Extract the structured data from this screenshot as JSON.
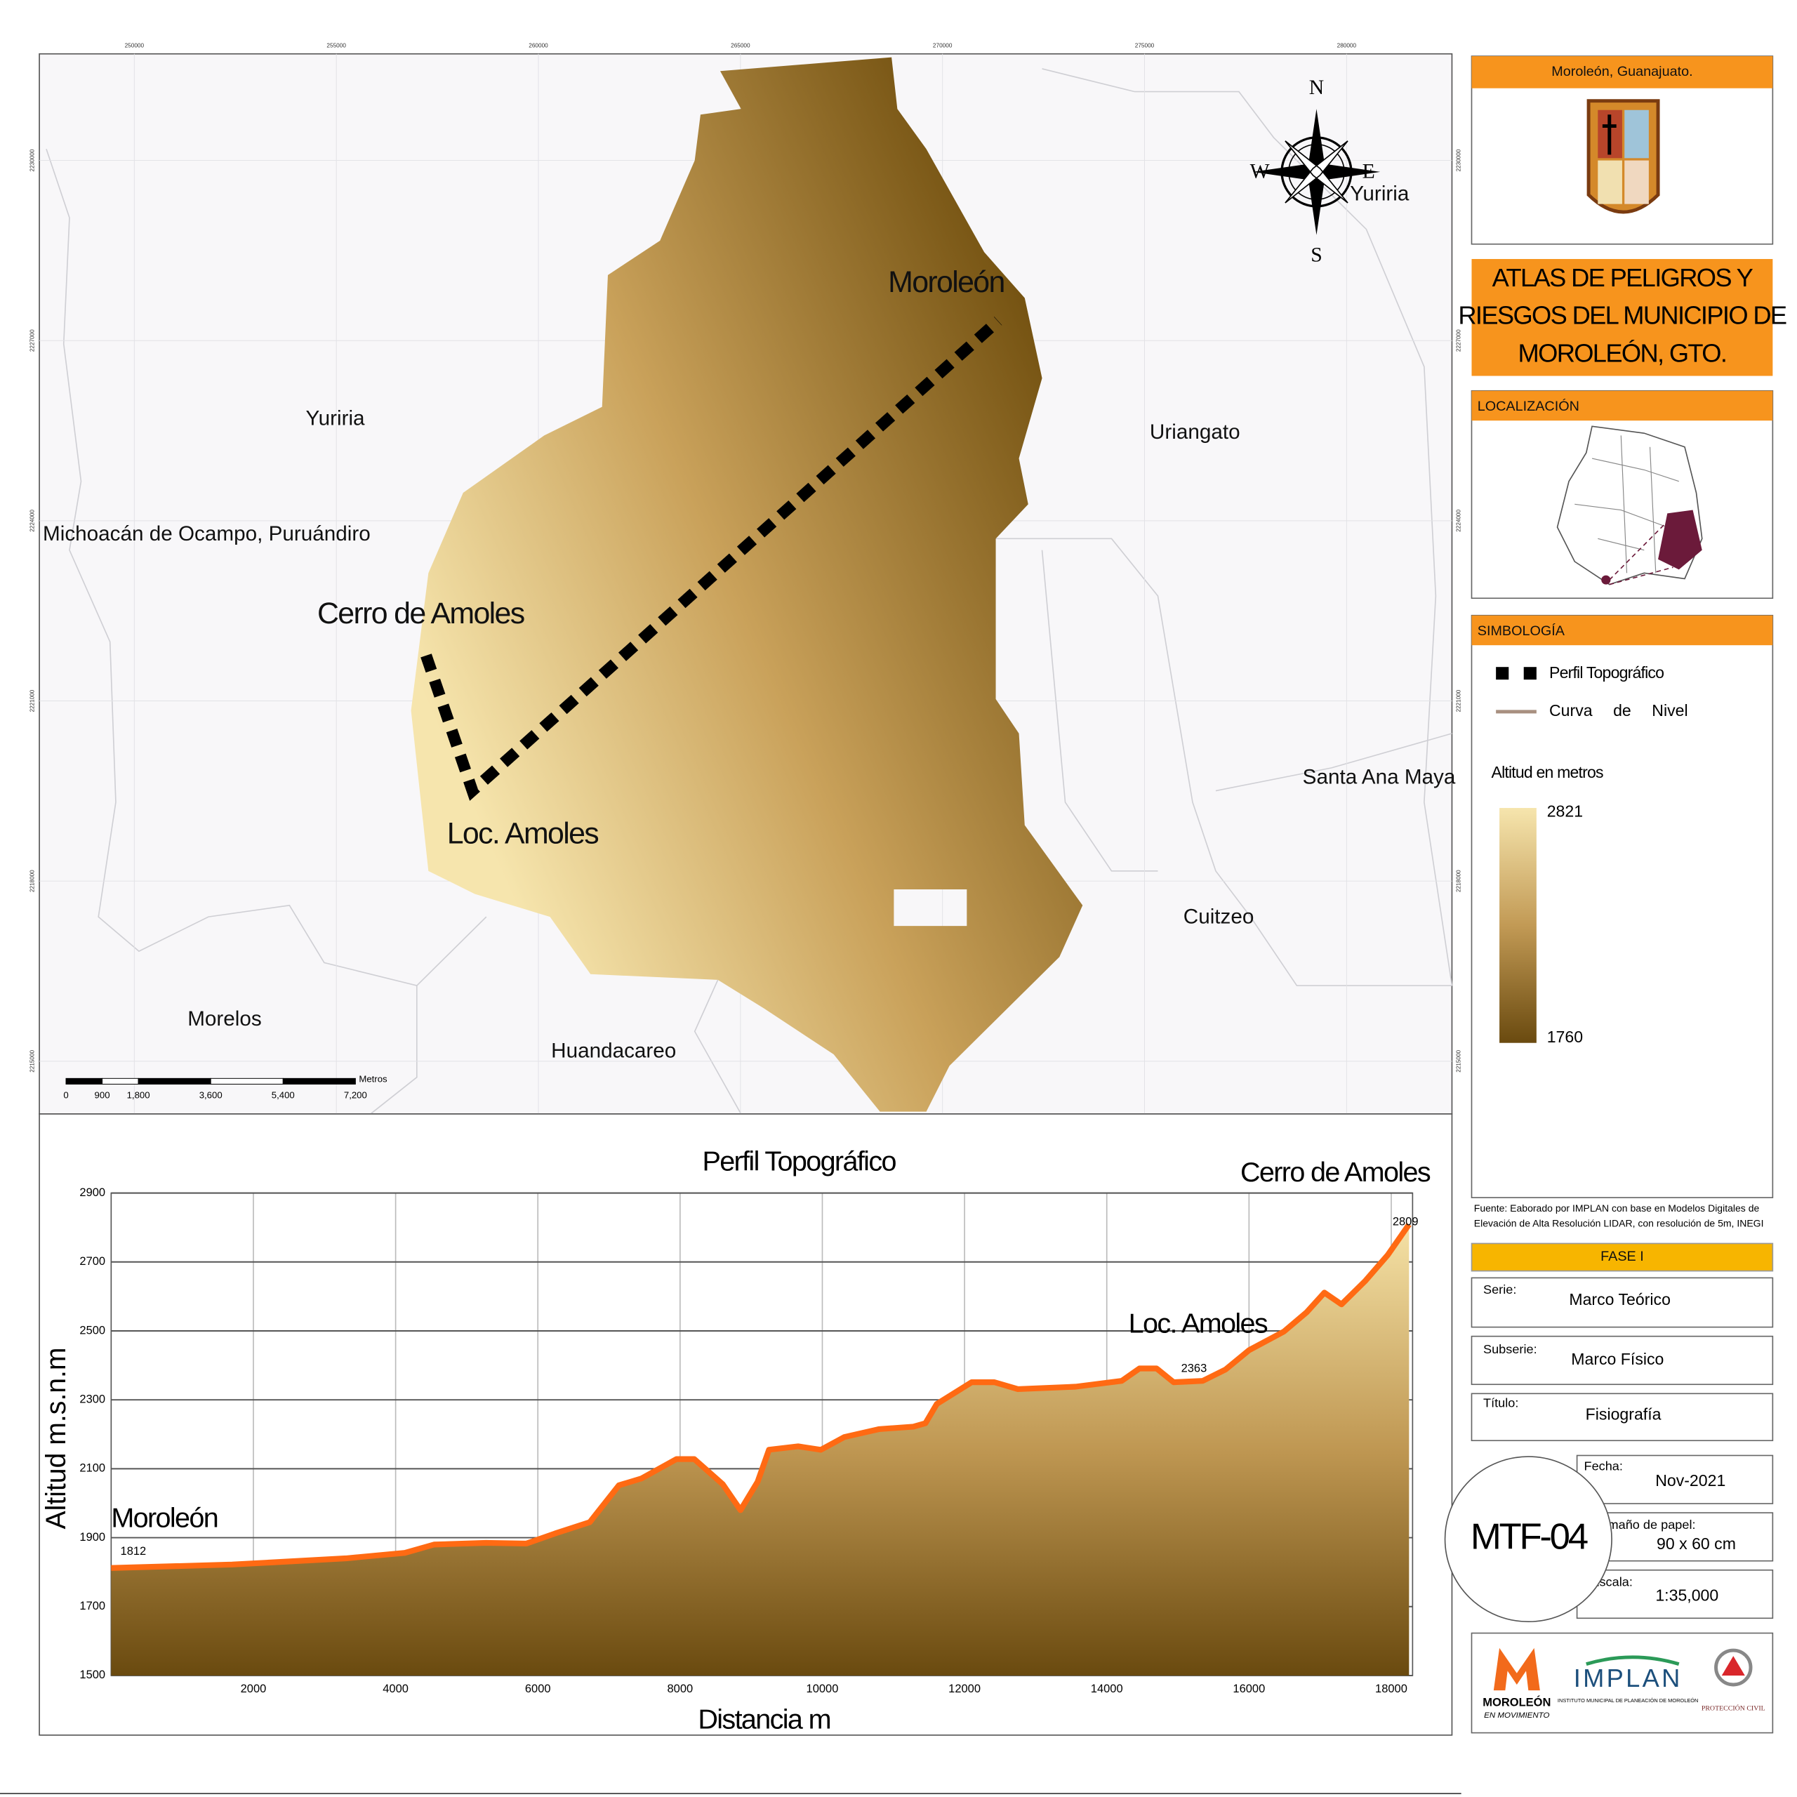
{
  "map": {
    "xticks": [
      250000,
      255000,
      260000,
      265000,
      270000,
      275000,
      280000
    ],
    "yticks": [
      2230000,
      2227000,
      2224000,
      2221000,
      2218000,
      2215000
    ],
    "places": [
      "Moroleón",
      "Yuriria",
      "Yuriria",
      "Uriangato",
      "Michoacán de Ocampo, Puruándiro",
      "Cerro de Amoles",
      "Loc. Amoles",
      "Santa Ana Maya",
      "Cuitzeo",
      "Morelos",
      "Huandacareo"
    ],
    "compass": {
      "n": "N",
      "e": "E",
      "s": "S",
      "w": "W"
    },
    "scale_bar": {
      "unit": "Metros",
      "ticks": [
        0,
        900,
        {
          "value": 1800,
          "label": "1,800"
        },
        {
          "value": 3600,
          "label": "3,600"
        },
        {
          "value": 5400,
          "label": "5,400"
        },
        {
          "value": 7200,
          "label": "7,200"
        }
      ]
    }
  },
  "panel": {
    "location_title": "Moroleón, Guanajuato.",
    "atlas_title": [
      "ATLAS DE PELIGROS Y",
      "RIESGOS DEL MUNICIPIO DE",
      "MOROLEÓN, GTO."
    ],
    "localization": "LOCALIZACIÓN",
    "legend": {
      "title": "SIMBOLOGÍA",
      "items": [
        "Perfil Topográfico",
        "Curva de Nivel"
      ],
      "ramp_title": "Altitud en metros",
      "ramp_max": 2821,
      "ramp_min": 1760
    },
    "source": [
      "Fuente: Eaborado por IMPLAN con base en Modelos Digitales de",
      "Elevación de Alta Resolución LIDAR, con resolución de 5m, INEGI"
    ],
    "phase": "FASE I",
    "fields": [
      {
        "label": "Serie:",
        "value": "Marco Teórico"
      },
      {
        "label": "Subserie:",
        "value": "Marco Físico"
      },
      {
        "label": "Título:",
        "value": "Fisiografía"
      },
      {
        "label": "Fecha:",
        "value": "Nov-2021"
      },
      {
        "label": "Tamaño de papel:",
        "value": "90 x 60 cm"
      },
      {
        "label": "Escala:",
        "value": "1:35,000"
      }
    ],
    "code": "MTF-04",
    "logos": [
      "MOROLEÓN",
      "EN MOVIMIENTO",
      "IMPLAN",
      "INSTITUTO MUNICIPAL DE PLANEACIÓN DE MOROLEÓN",
      "PROTECCIÓN CIVIL"
    ]
  },
  "chart_data": {
    "type": "line",
    "title": "Perfil Topográfico",
    "x_label": "Distancia m",
    "y_label": "Altitud m.s.n.m",
    "x": [
      0,
      1700,
      3300,
      4130,
      4540,
      5270,
      5840,
      6240,
      6730,
      7140,
      7460,
      7950,
      8200,
      8600,
      8850,
      9090,
      9250,
      9660,
      9980,
      10310,
      10800,
      11280,
      11450,
      11610,
      12100,
      12420,
      12750,
      13560,
      14210,
      14460,
      14700,
      14940,
      15350,
      15670,
      16000,
      16490,
      16810,
      17060,
      17300,
      17630,
      17950,
      18250
    ],
    "values": [
      1812,
      1822,
      1840,
      1856,
      1880,
      1885,
      1883,
      1912,
      1945,
      2052,
      2072,
      2128,
      2128,
      2055,
      1980,
      2062,
      2155,
      2165,
      2155,
      2192,
      2215,
      2222,
      2232,
      2288,
      2351,
      2351,
      2331,
      2338,
      2355,
      2391,
      2391,
      2351,
      2355,
      2388,
      2444,
      2498,
      2554,
      2611,
      2577,
      2644,
      2720,
      2809
    ],
    "color": "#ff6a13",
    "xlim": [
      0,
      18300
    ],
    "ylim": [
      1500,
      2900
    ],
    "xticks": [
      2000,
      4000,
      6000,
      8000,
      10000,
      12000,
      14000,
      16000,
      18000
    ],
    "yticks": [
      1500,
      1700,
      1900,
      2100,
      2300,
      2500,
      2700,
      2900
    ],
    "grid": true,
    "annotations": [
      {
        "text": "Moroleón",
        "x": 0,
        "y": 1812
      },
      {
        "text": "Loc. Amoles",
        "x": 15000,
        "y": 2363
      },
      {
        "text": "Cerro de Amoles",
        "x": 18250,
        "y": 2809
      }
    ]
  }
}
